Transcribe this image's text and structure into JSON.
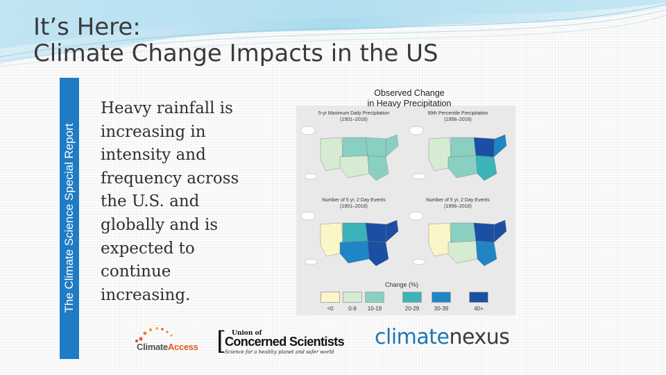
{
  "slide": {
    "title_line1": "It’s Here:",
    "title_line2": "Climate Change Impacts in the US",
    "side_label": "The Climate Science Special Report",
    "body": [
      "Heavy rainfall is",
      "increasing in",
      "intensity and",
      "frequency across",
      "the U.S. and",
      "globally and is",
      "expected to",
      "continue",
      "increasing."
    ]
  },
  "figure": {
    "title_line1": "Observed Change",
    "title_line2": "in Heavy Precipitation",
    "panels": [
      {
        "caption1": "5-yr Maximum Daily Precipitation",
        "caption2": "(1901–2016)"
      },
      {
        "caption1": "99th Percentile Precipitation",
        "caption2": "(1958–2016)"
      },
      {
        "caption1": "Number of 5 yr, 2 Day Events",
        "caption2": "(1901–2016)"
      },
      {
        "caption1": "Number of 5 yr, 2 Day Events",
        "caption2": "(1958–2016)"
      }
    ],
    "legend_title": "Change (%)",
    "legend": [
      {
        "label": "<0",
        "color": "#fbf6c8"
      },
      {
        "label": "0-9",
        "color": "#d6ecd2"
      },
      {
        "label": "10-19",
        "color": "#8ad0c2"
      },
      {
        "label": "20-29",
        "color": "#3bb3b8"
      },
      {
        "label": "30-39",
        "color": "#1f85c4"
      },
      {
        "label": "40+",
        "color": "#1b4fa3"
      }
    ]
  },
  "logos": {
    "climate_access": {
      "part1": "Climate",
      "part2": "Access"
    },
    "ucs": {
      "line1": "Union of",
      "line2": "Concerned Scientists",
      "tagline": "Science for a healthy planet and safer world"
    },
    "climate_nexus": {
      "part1": "climate",
      "part2": "nexus"
    }
  }
}
